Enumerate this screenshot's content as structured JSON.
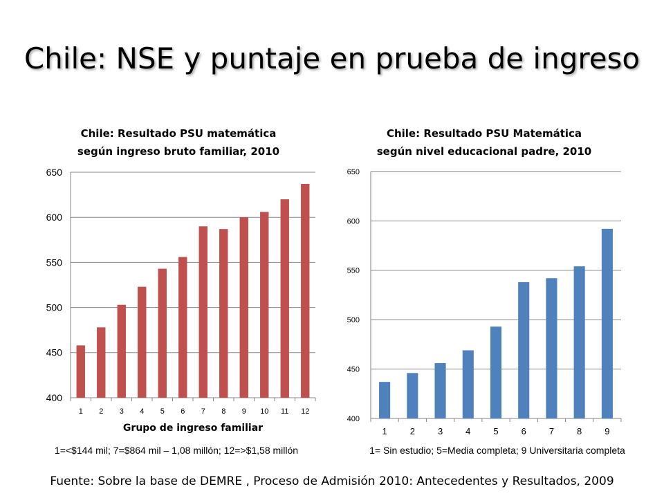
{
  "slide": {
    "title": "Chile: NSE y puntaje en prueba de ingreso",
    "source": "Fuente: Sobre la base de DEMRE , Proceso de Admisión 2010: Antecedentes y Resultados, 2009"
  },
  "chart_data": [
    {
      "type": "bar",
      "title_lines": [
        "Chile: Resultado PSU matemática",
        "según ingreso bruto familiar, 2010"
      ],
      "xlabel": "Grupo de ingreso familiar",
      "ylabel": "",
      "categories": [
        "1",
        "2",
        "3",
        "4",
        "5",
        "6",
        "7",
        "8",
        "9",
        "10",
        "11",
        "12"
      ],
      "values": [
        458,
        478,
        503,
        523,
        543,
        556,
        590,
        587,
        600,
        606,
        620,
        637
      ],
      "ylim": [
        400,
        650
      ],
      "yticks": [
        400,
        450,
        500,
        550,
        600,
        650
      ],
      "color": "#C0504D",
      "grid": true,
      "note": "1=<$144 mil; 7=$864 mil – 1,08 millón; 12=>$1,58 millón"
    },
    {
      "type": "bar",
      "title_lines": [
        "Chile: Resultado PSU Matemática",
        "según nivel educacional padre, 2010"
      ],
      "xlabel": "",
      "ylabel": "",
      "categories": [
        "1",
        "2",
        "3",
        "4",
        "5",
        "6",
        "7",
        "8",
        "9"
      ],
      "values": [
        437,
        446,
        456,
        469,
        493,
        538,
        542,
        554,
        592
      ],
      "ylim": [
        400,
        650
      ],
      "yticks": [
        400,
        450,
        500,
        550,
        600,
        650
      ],
      "color": "#4F81BD",
      "grid": true,
      "note": "1= Sin estudio; 5=Media completa; 9 Universitaria completa"
    }
  ]
}
